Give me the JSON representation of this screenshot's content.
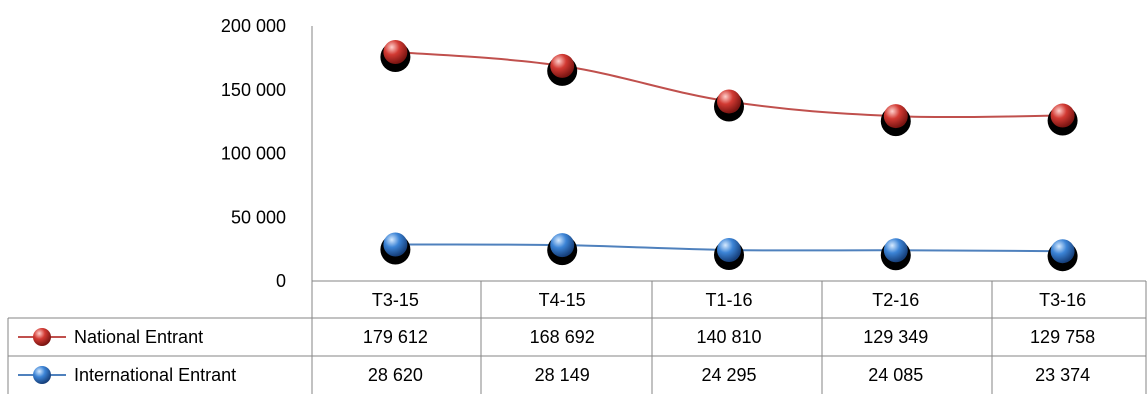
{
  "chart_data": {
    "type": "line",
    "categories": [
      "T3-15",
      "T4-15",
      "T1-16",
      "T2-16",
      "T3-16"
    ],
    "series": [
      {
        "name": "National Entrant",
        "color": "#c0504d",
        "marker_color": "#d23a33",
        "values": [
          179612,
          168692,
          140810,
          129349,
          129758
        ],
        "value_labels": [
          "179 612",
          "168 692",
          "140 810",
          "129 349",
          "129 758"
        ]
      },
      {
        "name": "International Entrant",
        "color": "#4f81bd",
        "marker_color": "#3c84d6",
        "values": [
          28620,
          28149,
          24295,
          24085,
          23374
        ],
        "value_labels": [
          "28 620",
          "28 149",
          "24 295",
          "24 085",
          "23 374"
        ]
      }
    ],
    "y_ticks": [
      0,
      50000,
      100000,
      150000,
      200000
    ],
    "y_tick_labels": [
      "0",
      "50 000",
      "100 000",
      "150 000",
      "200 000"
    ],
    "ylim": [
      0,
      200000
    ],
    "legend": "data-table",
    "grid": false
  }
}
